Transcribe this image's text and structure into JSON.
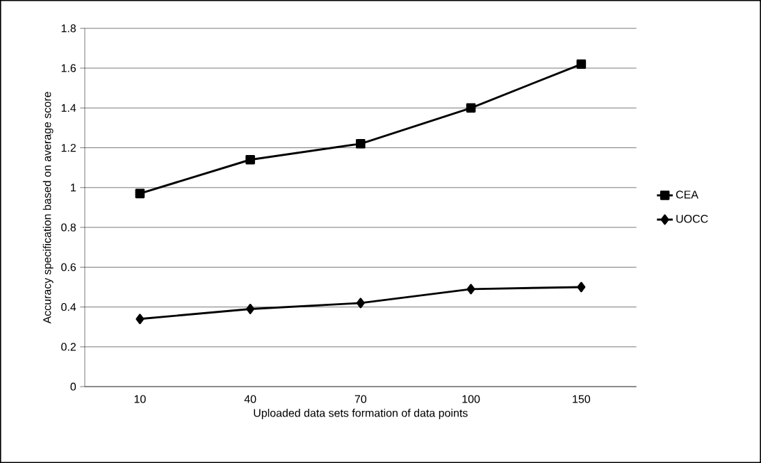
{
  "chart_data": {
    "type": "line",
    "xlabel": "Uploaded data sets formation of data points",
    "ylabel": "Accuracy specification based on average score",
    "categories": [
      "10",
      "40",
      "70",
      "100",
      "150"
    ],
    "series": [
      {
        "name": "CEA",
        "color": "#000000",
        "marker": "square",
        "values": [
          0.97,
          1.14,
          1.22,
          1.4,
          1.62
        ]
      },
      {
        "name": "UOCC",
        "color": "#000000",
        "marker": "diamond",
        "values": [
          0.34,
          0.39,
          0.42,
          0.49,
          0.5
        ]
      }
    ],
    "ylim": [
      0,
      1.8
    ],
    "yticks": [
      0,
      0.2,
      0.4,
      0.6,
      0.8,
      1,
      1.2,
      1.4,
      1.6,
      1.8
    ],
    "grid": "y",
    "legend": "right",
    "line_style": "solid"
  }
}
